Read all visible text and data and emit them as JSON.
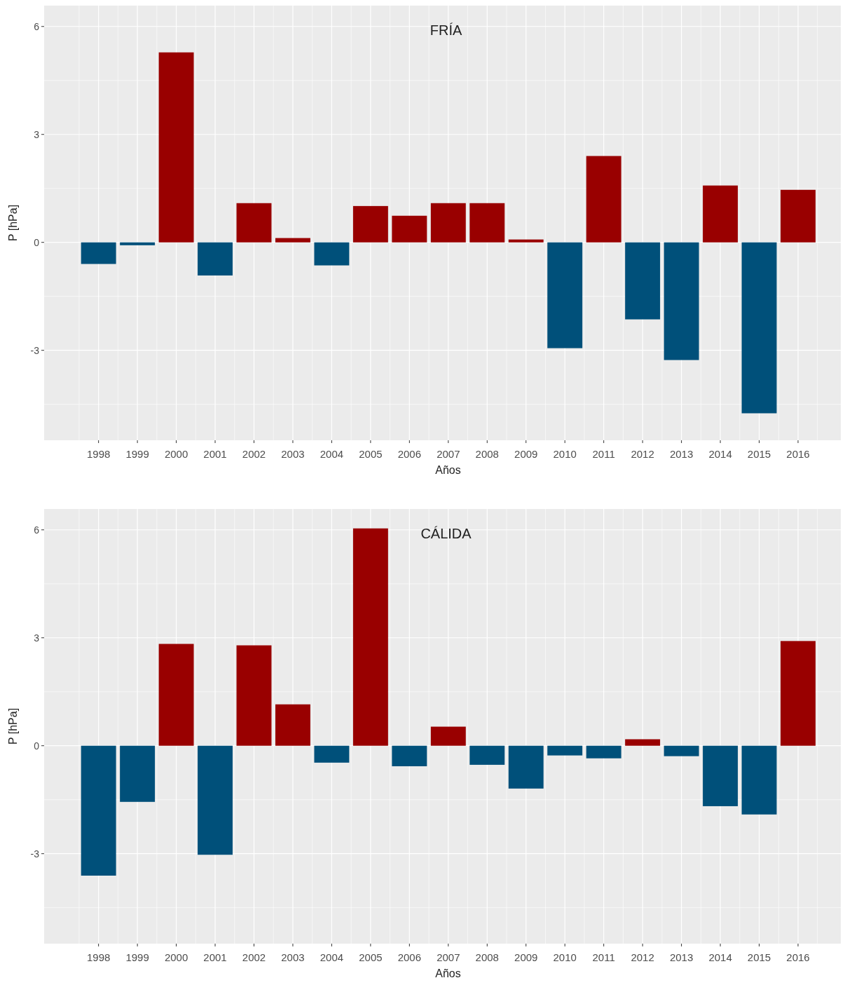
{
  "chart_data": [
    {
      "type": "bar",
      "title": "FRÍA",
      "xlabel": "Años",
      "ylabel": "P [hPa]",
      "categories": [
        "1998",
        "1999",
        "2000",
        "2001",
        "2002",
        "2003",
        "2004",
        "2005",
        "2006",
        "2007",
        "2008",
        "2009",
        "2010",
        "2011",
        "2012",
        "2013",
        "2014",
        "2015",
        "2016"
      ],
      "values": [
        -0.6,
        -0.08,
        5.28,
        -0.92,
        1.09,
        0.12,
        -0.64,
        1.01,
        0.74,
        1.09,
        1.09,
        0.08,
        -2.94,
        2.4,
        -2.14,
        -3.27,
        1.58,
        -4.75,
        1.46
      ],
      "colors": [
        "#00507a",
        "#00507a",
        "#990000",
        "#00507a",
        "#990000",
        "#990000",
        "#00507a",
        "#990000",
        "#990000",
        "#990000",
        "#990000",
        "#990000",
        "#00507a",
        "#990000",
        "#00507a",
        "#00507a",
        "#990000",
        "#00507a",
        "#990000"
      ],
      "ylim": [
        -5.5,
        6.58
      ],
      "yticks": [
        {
          "value": -4.5,
          "label": null
        },
        -3,
        {
          "value": -1.5,
          "label": null
        },
        0,
        {
          "value": 1.5,
          "label": null
        },
        3,
        {
          "value": 4.5,
          "label": null
        },
        6
      ],
      "grid": true
    },
    {
      "type": "bar",
      "title": "CÁLIDA",
      "xlabel": "Años",
      "ylabel": "P [hPa]",
      "categories": [
        "1998",
        "1999",
        "2000",
        "2001",
        "2002",
        "2003",
        "2004",
        "2005",
        "2006",
        "2007",
        "2008",
        "2009",
        "2010",
        "2011",
        "2012",
        "2013",
        "2014",
        "2015",
        "2016"
      ],
      "values": [
        -3.61,
        -1.56,
        2.83,
        -3.03,
        2.79,
        1.15,
        -0.47,
        6.04,
        -0.57,
        0.53,
        -0.53,
        -1.19,
        -0.27,
        -0.35,
        0.18,
        -0.29,
        -1.68,
        -1.91,
        2.91
      ],
      "colors": [
        "#00507a",
        "#00507a",
        "#990000",
        "#00507a",
        "#990000",
        "#990000",
        "#00507a",
        "#990000",
        "#00507a",
        "#990000",
        "#00507a",
        "#00507a",
        "#00507a",
        "#00507a",
        "#990000",
        "#00507a",
        "#00507a",
        "#00507a",
        "#990000"
      ],
      "ylim": [
        -5.5,
        6.58
      ],
      "yticks": [
        {
          "value": -4.5,
          "label": null
        },
        -3,
        {
          "value": -1.5,
          "label": null
        },
        0,
        {
          "value": 1.5,
          "label": null
        },
        3,
        {
          "value": 4.5,
          "label": null
        },
        6
      ],
      "grid": true
    }
  ]
}
